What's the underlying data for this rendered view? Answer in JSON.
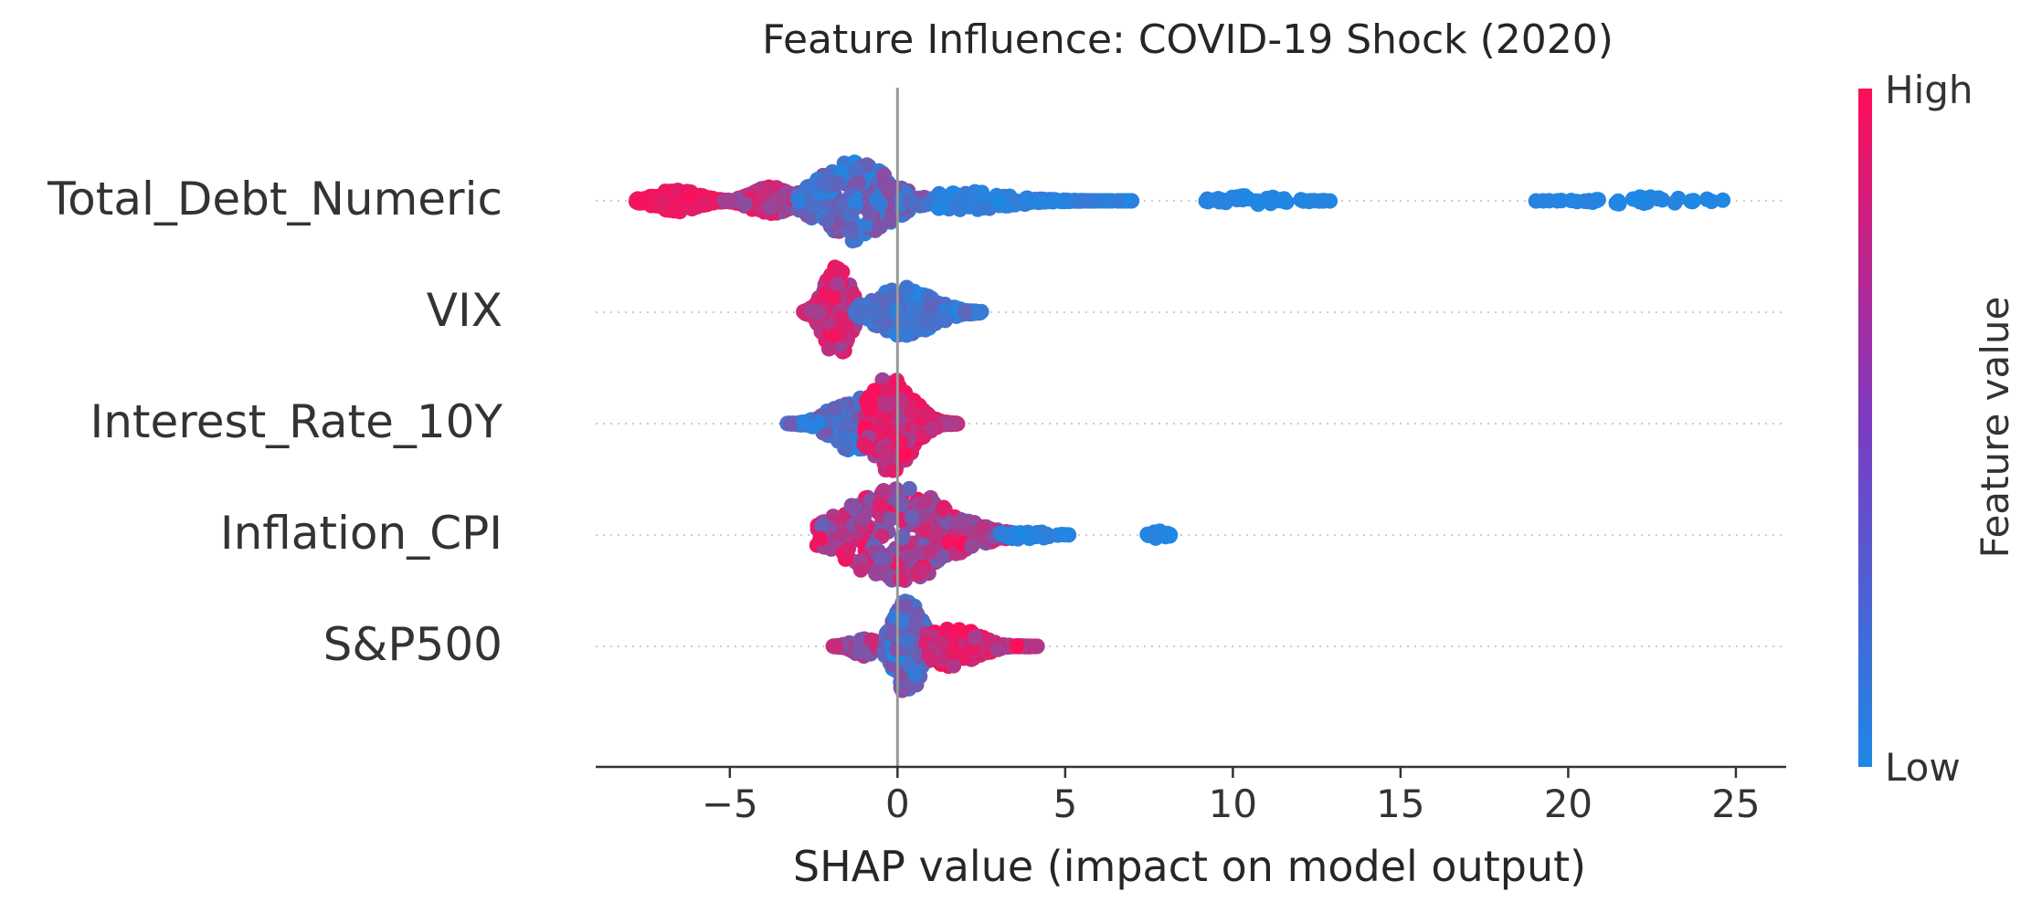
{
  "chart_data": {
    "type": "scatter",
    "subtype": "shap-beeswarm",
    "title": "Feature Influence: COVID-19 Shock (2020)",
    "xlabel": "SHAP value (impact on model output)",
    "xlim": [
      -9,
      26.5
    ],
    "xticks": [
      -5,
      0,
      5,
      10,
      15,
      20,
      25
    ],
    "xtick_labels": [
      "−5",
      "0",
      "5",
      "10",
      "15",
      "20",
      "25"
    ],
    "colorbar": {
      "label": "Feature value",
      "high_label": "High",
      "low_label": "Low",
      "low_color": "#1e88e5",
      "high_color": "#ff0d57"
    },
    "zero_line": true,
    "features": [
      {
        "name": "Total_Debt_Numeric",
        "clusters": [
          {
            "min": -7.8,
            "max": -5.0,
            "peak": -6.6,
            "halfwidth": 0.22,
            "n": 200,
            "vlo": 0.85,
            "vhi": 1.0
          },
          {
            "min": -5.2,
            "max": -2.8,
            "peak": -3.8,
            "halfwidth": 0.28,
            "n": 130,
            "vlo": 0.45,
            "vhi": 0.9
          },
          {
            "min": -3.0,
            "max": 1.5,
            "peak": -1.3,
            "halfwidth": 0.8,
            "n": 340,
            "vlo": 0.0,
            "vhi": 0.55
          },
          {
            "min": 1.2,
            "max": 7.0,
            "peak": 2.0,
            "halfwidth": 0.2,
            "n": 130,
            "vlo": 0.0,
            "vhi": 0.12
          },
          {
            "min": 8.9,
            "max": 12.9,
            "peak": 10.5,
            "halfwidth": 0.1,
            "n": 45,
            "vlo": 0.0,
            "vhi": 0.05
          },
          {
            "min": 19.0,
            "max": 24.7,
            "peak": 22.5,
            "halfwidth": 0.08,
            "n": 40,
            "vlo": 0.0,
            "vhi": 0.05
          }
        ]
      },
      {
        "name": "VIX",
        "clusters": [
          {
            "min": -2.8,
            "max": -1.2,
            "peak": -1.8,
            "halfwidth": 0.95,
            "n": 260,
            "vlo": 0.55,
            "vhi": 1.0
          },
          {
            "min": -1.3,
            "max": 2.5,
            "peak": 0.2,
            "halfwidth": 0.5,
            "n": 200,
            "vlo": 0.0,
            "vhi": 0.3
          }
        ]
      },
      {
        "name": "Interest_Rate_10Y",
        "clusters": [
          {
            "min": -3.3,
            "max": -0.4,
            "peak": -1.3,
            "halfwidth": 0.55,
            "n": 180,
            "vlo": 0.0,
            "vhi": 0.4
          },
          {
            "min": -1.0,
            "max": 1.8,
            "peak": -0.2,
            "halfwidth": 0.95,
            "n": 280,
            "vlo": 0.55,
            "vhi": 1.0
          }
        ]
      },
      {
        "name": "Inflation_CPI",
        "clusters": [
          {
            "min": -2.4,
            "max": 4.0,
            "peak": 0.0,
            "halfwidth": 0.95,
            "n": 380,
            "vlo": 0.3,
            "vhi": 1.0
          },
          {
            "min": 3.0,
            "max": 5.3,
            "peak": 3.8,
            "halfwidth": 0.1,
            "n": 30,
            "vlo": 0.0,
            "vhi": 0.1
          },
          {
            "min": 7.4,
            "max": 8.2,
            "peak": 7.8,
            "halfwidth": 0.08,
            "n": 20,
            "vlo": 0.0,
            "vhi": 0.05
          }
        ]
      },
      {
        "name": "S&P500",
        "clusters": [
          {
            "min": -2.0,
            "max": -0.5,
            "peak": -1.0,
            "halfwidth": 0.2,
            "n": 60,
            "vlo": 0.4,
            "vhi": 0.8
          },
          {
            "min": -0.4,
            "max": 1.4,
            "peak": 0.3,
            "halfwidth": 0.95,
            "n": 260,
            "vlo": 0.0,
            "vhi": 0.5
          },
          {
            "min": 0.8,
            "max": 4.2,
            "peak": 1.6,
            "halfwidth": 0.4,
            "n": 170,
            "vlo": 0.6,
            "vhi": 1.0
          }
        ]
      }
    ]
  }
}
